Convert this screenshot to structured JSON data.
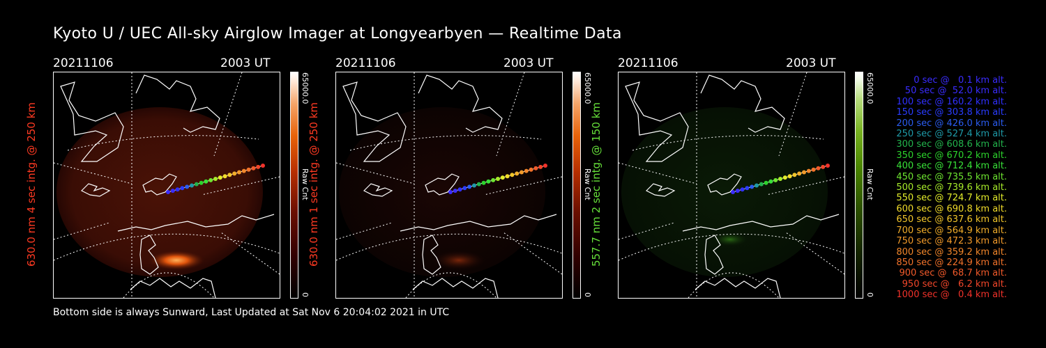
{
  "title": "Kyoto U / UEC All-sky Airglow Imager at Longyearbyen — Realtime Data",
  "panels": [
    {
      "date": "20211106",
      "time": "2003 UT",
      "ylabel": "630.0 nm 4 sec intg. @ 250 km",
      "cbar_max": "65000.0",
      "cbar_min": "0",
      "cbar_unit": "Raw Cnt",
      "color": "#ff3a22"
    },
    {
      "date": "20211106",
      "time": "2003 UT",
      "ylabel": "630.0 nm 1 sec intg. @ 250 km",
      "cbar_max": "65000.0",
      "cbar_min": "0",
      "cbar_unit": "Raw Cnt",
      "color": "#ff3a22"
    },
    {
      "date": "20211106",
      "time": "2003 UT",
      "ylabel": "557.7 nm 2 sec intg. @ 150 km",
      "cbar_max": "65000.0",
      "cbar_min": "0",
      "cbar_unit": "Raw Cnt",
      "color": "#66e03a"
    }
  ],
  "legend": [
    {
      "text": "0 sec @   0.1 km alt.",
      "color": "#3a2cff"
    },
    {
      "text": "50 sec @  52.0 km alt.",
      "color": "#3a2cff"
    },
    {
      "text": "100 sec @ 160.2 km alt.",
      "color": "#3030ff"
    },
    {
      "text": "150 sec @ 303.8 km alt.",
      "color": "#2a3cff"
    },
    {
      "text": "200 sec @ 426.0 km alt.",
      "color": "#2a5cf0"
    },
    {
      "text": "250 sec @ 527.4 km alt.",
      "color": "#1e9aa8"
    },
    {
      "text": "300 sec @ 608.6 km alt.",
      "color": "#22b44c"
    },
    {
      "text": "350 sec @ 670.2 km alt.",
      "color": "#2cd42c"
    },
    {
      "text": "400 sec @ 712.4 km alt.",
      "color": "#38e238"
    },
    {
      "text": "450 sec @ 735.5 km alt.",
      "color": "#6ee630"
    },
    {
      "text": "500 sec @ 739.6 km alt.",
      "color": "#a8ec2a"
    },
    {
      "text": "550 sec @ 724.7 km alt.",
      "color": "#e2ec2a"
    },
    {
      "text": "600 sec @ 690.8 km alt.",
      "color": "#f2dc2a"
    },
    {
      "text": "650 sec @ 637.6 km alt.",
      "color": "#f2c62a"
    },
    {
      "text": "700 sec @ 564.9 km alt.",
      "color": "#f2ae2a"
    },
    {
      "text": "750 sec @ 472.3 km alt.",
      "color": "#f29a2a"
    },
    {
      "text": "800 sec @ 359.2 km alt.",
      "color": "#f2862a"
    },
    {
      "text": "850 sec @ 224.9 km alt.",
      "color": "#f2722a"
    },
    {
      "text": "900 sec @  68.7 km alt.",
      "color": "#f25a2a"
    },
    {
      "text": "950 sec @   6.2 km alt.",
      "color": "#f2462a"
    },
    {
      "text": "1000 sec @   0.4 km alt.",
      "color": "#f2322a"
    }
  ],
  "footer": "Bottom side is always Sunward, Last Updated at Sat Nov  6 20:04:02 2021 in UTC",
  "colors": {
    "background": "#000000",
    "red_channel": "#ff3a22",
    "green_channel": "#66e03a",
    "map_lines": "#ffffff"
  }
}
